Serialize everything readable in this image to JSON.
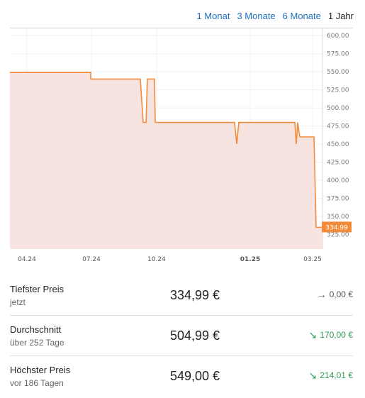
{
  "range_tabs": [
    {
      "label": "1 Monat",
      "active": false
    },
    {
      "label": "3 Monate",
      "active": false
    },
    {
      "label": "6 Monate",
      "active": false
    },
    {
      "label": "1 Jahr",
      "active": true
    }
  ],
  "chart_data": {
    "type": "area",
    "ylim": [
      305,
      610
    ],
    "y_ticks": [
      "600.00",
      "575.00",
      "550.00",
      "525.00",
      "500.00",
      "475.00",
      "450.00",
      "425.00",
      "400.00",
      "375.00",
      "350.00",
      "325.00"
    ],
    "x_ticks": [
      {
        "label": "04.24",
        "bold": false
      },
      {
        "label": "07.24",
        "bold": false
      },
      {
        "label": "10.24",
        "bold": false
      },
      {
        "label": "01.25",
        "bold": true
      },
      {
        "label": "03.25",
        "bold": false
      }
    ],
    "series": [
      {
        "values": [
          549,
          549,
          549,
          549,
          549,
          540,
          540,
          540,
          540,
          480,
          480,
          540,
          540,
          480,
          480,
          480,
          480,
          480,
          480,
          480,
          450,
          480,
          480,
          480,
          480,
          450,
          480,
          460,
          460,
          334.99,
          334.99
        ],
        "current_label": "334.99",
        "line_color": "#f28c3c",
        "fill_color": "#f7e4e1"
      }
    ],
    "grid": true,
    "legend": "none"
  },
  "stats": [
    {
      "label": "Tiefster Preis",
      "sub": "jetzt",
      "value": "334,99 €",
      "diff": "0,00 €",
      "diff_icon": "arrow-right",
      "trend": "neutral"
    },
    {
      "label": "Durchschnitt",
      "sub": "über 252 Tage",
      "value": "504,99 €",
      "diff": "170,00 €",
      "diff_icon": "arrow-down-right",
      "trend": "down"
    },
    {
      "label": "Höchster Preis",
      "sub": "vor 186 Tagen",
      "value": "549,00 €",
      "diff": "214,01 €",
      "diff_icon": "arrow-down-right",
      "trend": "down"
    }
  ]
}
